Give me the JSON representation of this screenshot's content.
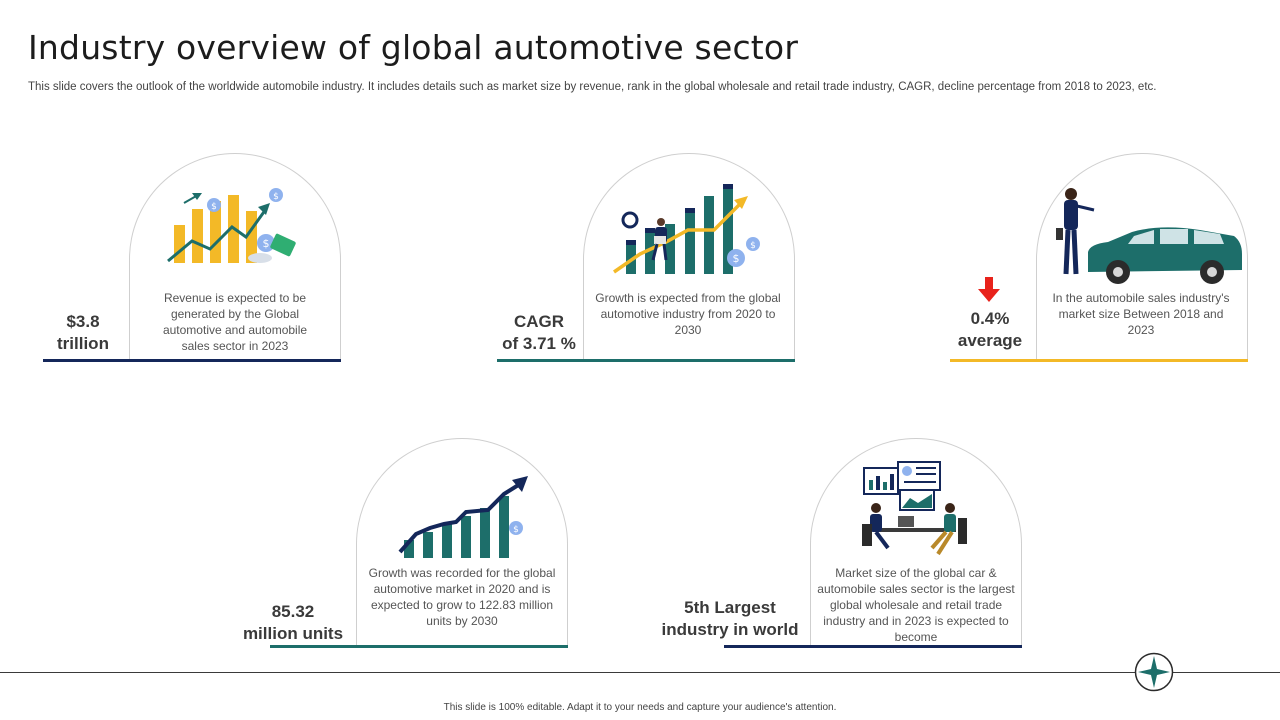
{
  "header": {
    "title": "Industry overview of global automotive sector",
    "subtitle": "This slide covers the outlook of the worldwide automobile industry. It includes details such as market size by revenue, rank in the global wholesale and retail trade industry, CAGR,  decline percentage from 2018 to 2023, etc."
  },
  "cards": [
    {
      "value_line1": "$3.8",
      "value_line2": "trillion",
      "description": "Revenue  is expected to be generated  by the Global automotive  and automobile sales sector in 2023",
      "icon": "revenue-growth-chart-icon",
      "accent": "#14275a"
    },
    {
      "value_line1": "CAGR",
      "value_line2": "of 3.71 %",
      "description": "Growth is expected from the global automotive industry from 2020 to 2030",
      "icon": "growth-chart-person-icon",
      "accent": "#1d6e6a"
    },
    {
      "value_line1": "0.4%",
      "value_line2": "average",
      "description": "In the automobile sales industry's market size Between 2018 and 2023",
      "icon": "car-salesperson-icon",
      "accent": "#f3b927",
      "badge_icon": "red-down-arrow-icon"
    },
    {
      "value_line1": "85.32",
      "value_line2": "million units",
      "description": "Growth was recorded for the global automotive  market in 2020 and is expected to grow to 122.83 million units by 2030",
      "icon": "growth-bar-arrow-icon",
      "accent": "#1d6e6a"
    },
    {
      "value_line1": "5th Largest",
      "value_line2": "industry in world",
      "description": "Market size of the global car & automobile sales sector is the largest global wholesale  and retail trade industry and in 2023 is expected to become",
      "icon": "business-meeting-icon",
      "accent": "#14275a"
    }
  ],
  "footer": {
    "note": "This slide is 100% editable.  Adapt it to your needs and capture your audience's attention.",
    "logo_icon": "compass-star-icon"
  },
  "colors": {
    "navy": "#14275a",
    "teal": "#1d6e6a",
    "yellow": "#f3b927",
    "red": "#e8221b"
  }
}
